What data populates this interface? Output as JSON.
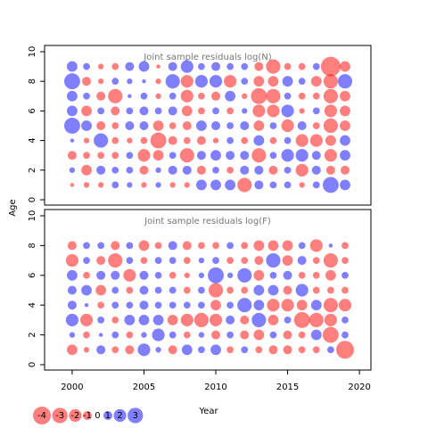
{
  "xlabel": "Year",
  "ylabel": "Age",
  "colors": {
    "negative": "#ff0000",
    "positive": "#0000ff"
  },
  "legend": {
    "values": [
      -4,
      -3,
      -2,
      -1,
      0,
      1,
      2,
      3
    ]
  },
  "chart_data": [
    {
      "type": "bubble",
      "title": "Joint sample residuals log(N)",
      "x": [
        2000,
        2001,
        2002,
        2003,
        2004,
        2005,
        2006,
        2007,
        2008,
        2009,
        2010,
        2011,
        2012,
        2013,
        2014,
        2015,
        2016,
        2017,
        2018,
        2019
      ],
      "y": [
        1,
        2,
        3,
        4,
        5,
        6,
        7,
        8,
        9
      ],
      "values": [
        [
          -0.2,
          -0.4,
          -0.4,
          0.6,
          0.4,
          -0.4,
          0.4,
          -0.4,
          -0.4,
          1.4,
          1.4,
          1.4,
          -2.6,
          1,
          0.6,
          0.6,
          -0.4,
          0.6,
          3.2,
          1.4
        ],
        [
          0.4,
          -1.4,
          1,
          0.6,
          0.6,
          -1,
          0.4,
          1,
          1,
          -1,
          0.6,
          -0.6,
          1,
          1,
          -1,
          0.6,
          -2,
          1,
          -1,
          -1
        ],
        [
          -1,
          -0.6,
          -0.6,
          -0.6,
          0.6,
          -2,
          -1.4,
          0.6,
          -2.6,
          1,
          1.4,
          1,
          1,
          -2.6,
          0.6,
          2,
          2,
          1,
          -2,
          1.4
        ],
        [
          0.2,
          -0.4,
          2.6,
          -0.6,
          -0.4,
          -0.6,
          -3.2,
          -1,
          -0.6,
          -1,
          -0.4,
          0.6,
          -0.6,
          1.4,
          -0.6,
          0.6,
          -2,
          -2,
          -1.4,
          1.4
        ],
        [
          3.2,
          1.4,
          -1,
          -0.6,
          1,
          1,
          -1.4,
          -0.6,
          -1,
          1.4,
          1,
          0.6,
          1,
          -1.4,
          0.6,
          -2,
          1,
          -0.6,
          -2.6,
          -1.4
        ],
        [
          1.4,
          -1.4,
          0.6,
          -1,
          0.6,
          1,
          0.6,
          1,
          -1.4,
          -0.6,
          0.6,
          -0.6,
          0.4,
          -2,
          -2,
          2,
          -0.4,
          0.6,
          -2,
          -1.4
        ],
        [
          1.4,
          0.6,
          -1,
          -2.6,
          0.2,
          0.6,
          -0.4,
          0.6,
          -2,
          -0.6,
          -1,
          1.4,
          -0.4,
          -3.2,
          -2.6,
          0.6,
          -0.6,
          -0.6,
          -2.6,
          -1.4
        ],
        [
          3.2,
          -1,
          -0.4,
          0.6,
          0.4,
          0.2,
          -0.4,
          2.6,
          -2,
          2,
          2,
          -2,
          0.6,
          -1.4,
          -1.4,
          1.4,
          0.6,
          -1.4,
          -2.6,
          2.6
        ],
        [
          1.4,
          0.6,
          -0.4,
          -0.6,
          1,
          1.4,
          -0.2,
          1,
          2,
          0.6,
          1,
          0.6,
          0.6,
          -1,
          -2.6,
          -0.6,
          -0.6,
          0.6,
          -4.8,
          -1.4
        ]
      ],
      "xlim": [
        1998.08,
        2020.8
      ],
      "ylim": [
        -0.36,
        10.42
      ],
      "yticks": [
        0,
        2,
        4,
        6,
        8,
        10
      ]
    },
    {
      "type": "bubble",
      "title": "Joint sample residuals log(F)",
      "x": [
        2000,
        2001,
        2002,
        2003,
        2004,
        2005,
        2006,
        2007,
        2008,
        2009,
        2010,
        2011,
        2012,
        2013,
        2014,
        2015,
        2016,
        2017,
        2018,
        2019
      ],
      "y": [
        1,
        2,
        3,
        4,
        5,
        6,
        7,
        8
      ],
      "values": [
        [
          -1.4,
          -0.4,
          1,
          -0.6,
          -1,
          2,
          0.4,
          -1,
          1.4,
          0.6,
          1.4,
          -0.6,
          0.6,
          -0.6,
          -1,
          -1,
          -0.6,
          -0.6,
          0.6,
          -4
        ],
        [
          0.4,
          -0.6,
          0.2,
          0.6,
          -0.6,
          0.4,
          2,
          0.6,
          -0.6,
          0.4,
          -1,
          0.6,
          -1,
          -1.4,
          0.6,
          -1,
          -0.6,
          1.4,
          -3.2,
          0.6
        ],
        [
          2,
          -2,
          0.6,
          -0.6,
          1.4,
          1.4,
          1.4,
          -1.4,
          -2,
          -2.6,
          -2,
          1,
          -1,
          2.6,
          -1.4,
          0.6,
          -3.2,
          -2.6,
          -2,
          0.6
        ],
        [
          1,
          0.2,
          -0.6,
          0.6,
          0.6,
          1,
          0.6,
          0.6,
          0.6,
          0.6,
          -1.4,
          0.6,
          2.6,
          1.4,
          -2,
          -2,
          -1.4,
          1.4,
          -2.6,
          -2
        ],
        [
          1,
          1.4,
          -1.4,
          0.6,
          -0.6,
          1,
          0.6,
          0.6,
          -0.6,
          0.6,
          -2.6,
          -0.6,
          -0.6,
          1.4,
          1.4,
          -1,
          2,
          -0.6,
          -0.6,
          -0.6
        ],
        [
          1.4,
          -0.6,
          1,
          1,
          -2,
          1,
          0.6,
          -0.6,
          -0.4,
          0.4,
          3.2,
          0.4,
          2.6,
          -1.4,
          0.6,
          1,
          -0.6,
          -0.6,
          -1.4,
          0.6
        ],
        [
          -2,
          0.6,
          -1,
          -2.6,
          0.6,
          -0.6,
          0.6,
          0.6,
          -0.6,
          0.4,
          0.6,
          -0.6,
          -0.6,
          -1,
          2.6,
          -1.4,
          1,
          -0.6,
          -2.6,
          -0.6
        ],
        [
          -1,
          0.6,
          0.6,
          -1,
          0.6,
          -1.4,
          -0.6,
          1,
          -1,
          -0.6,
          -0.6,
          0.6,
          -0.6,
          -1.4,
          -1.4,
          -1.4,
          0.6,
          -2,
          0.2,
          -0.6
        ]
      ],
      "xlim": [
        1998.08,
        2020.8
      ],
      "ylim": [
        -0.36,
        10.42
      ],
      "yticks": [
        0,
        2,
        4,
        6,
        8,
        10
      ],
      "xticks": [
        2000,
        2005,
        2010,
        2015,
        2020
      ]
    }
  ]
}
